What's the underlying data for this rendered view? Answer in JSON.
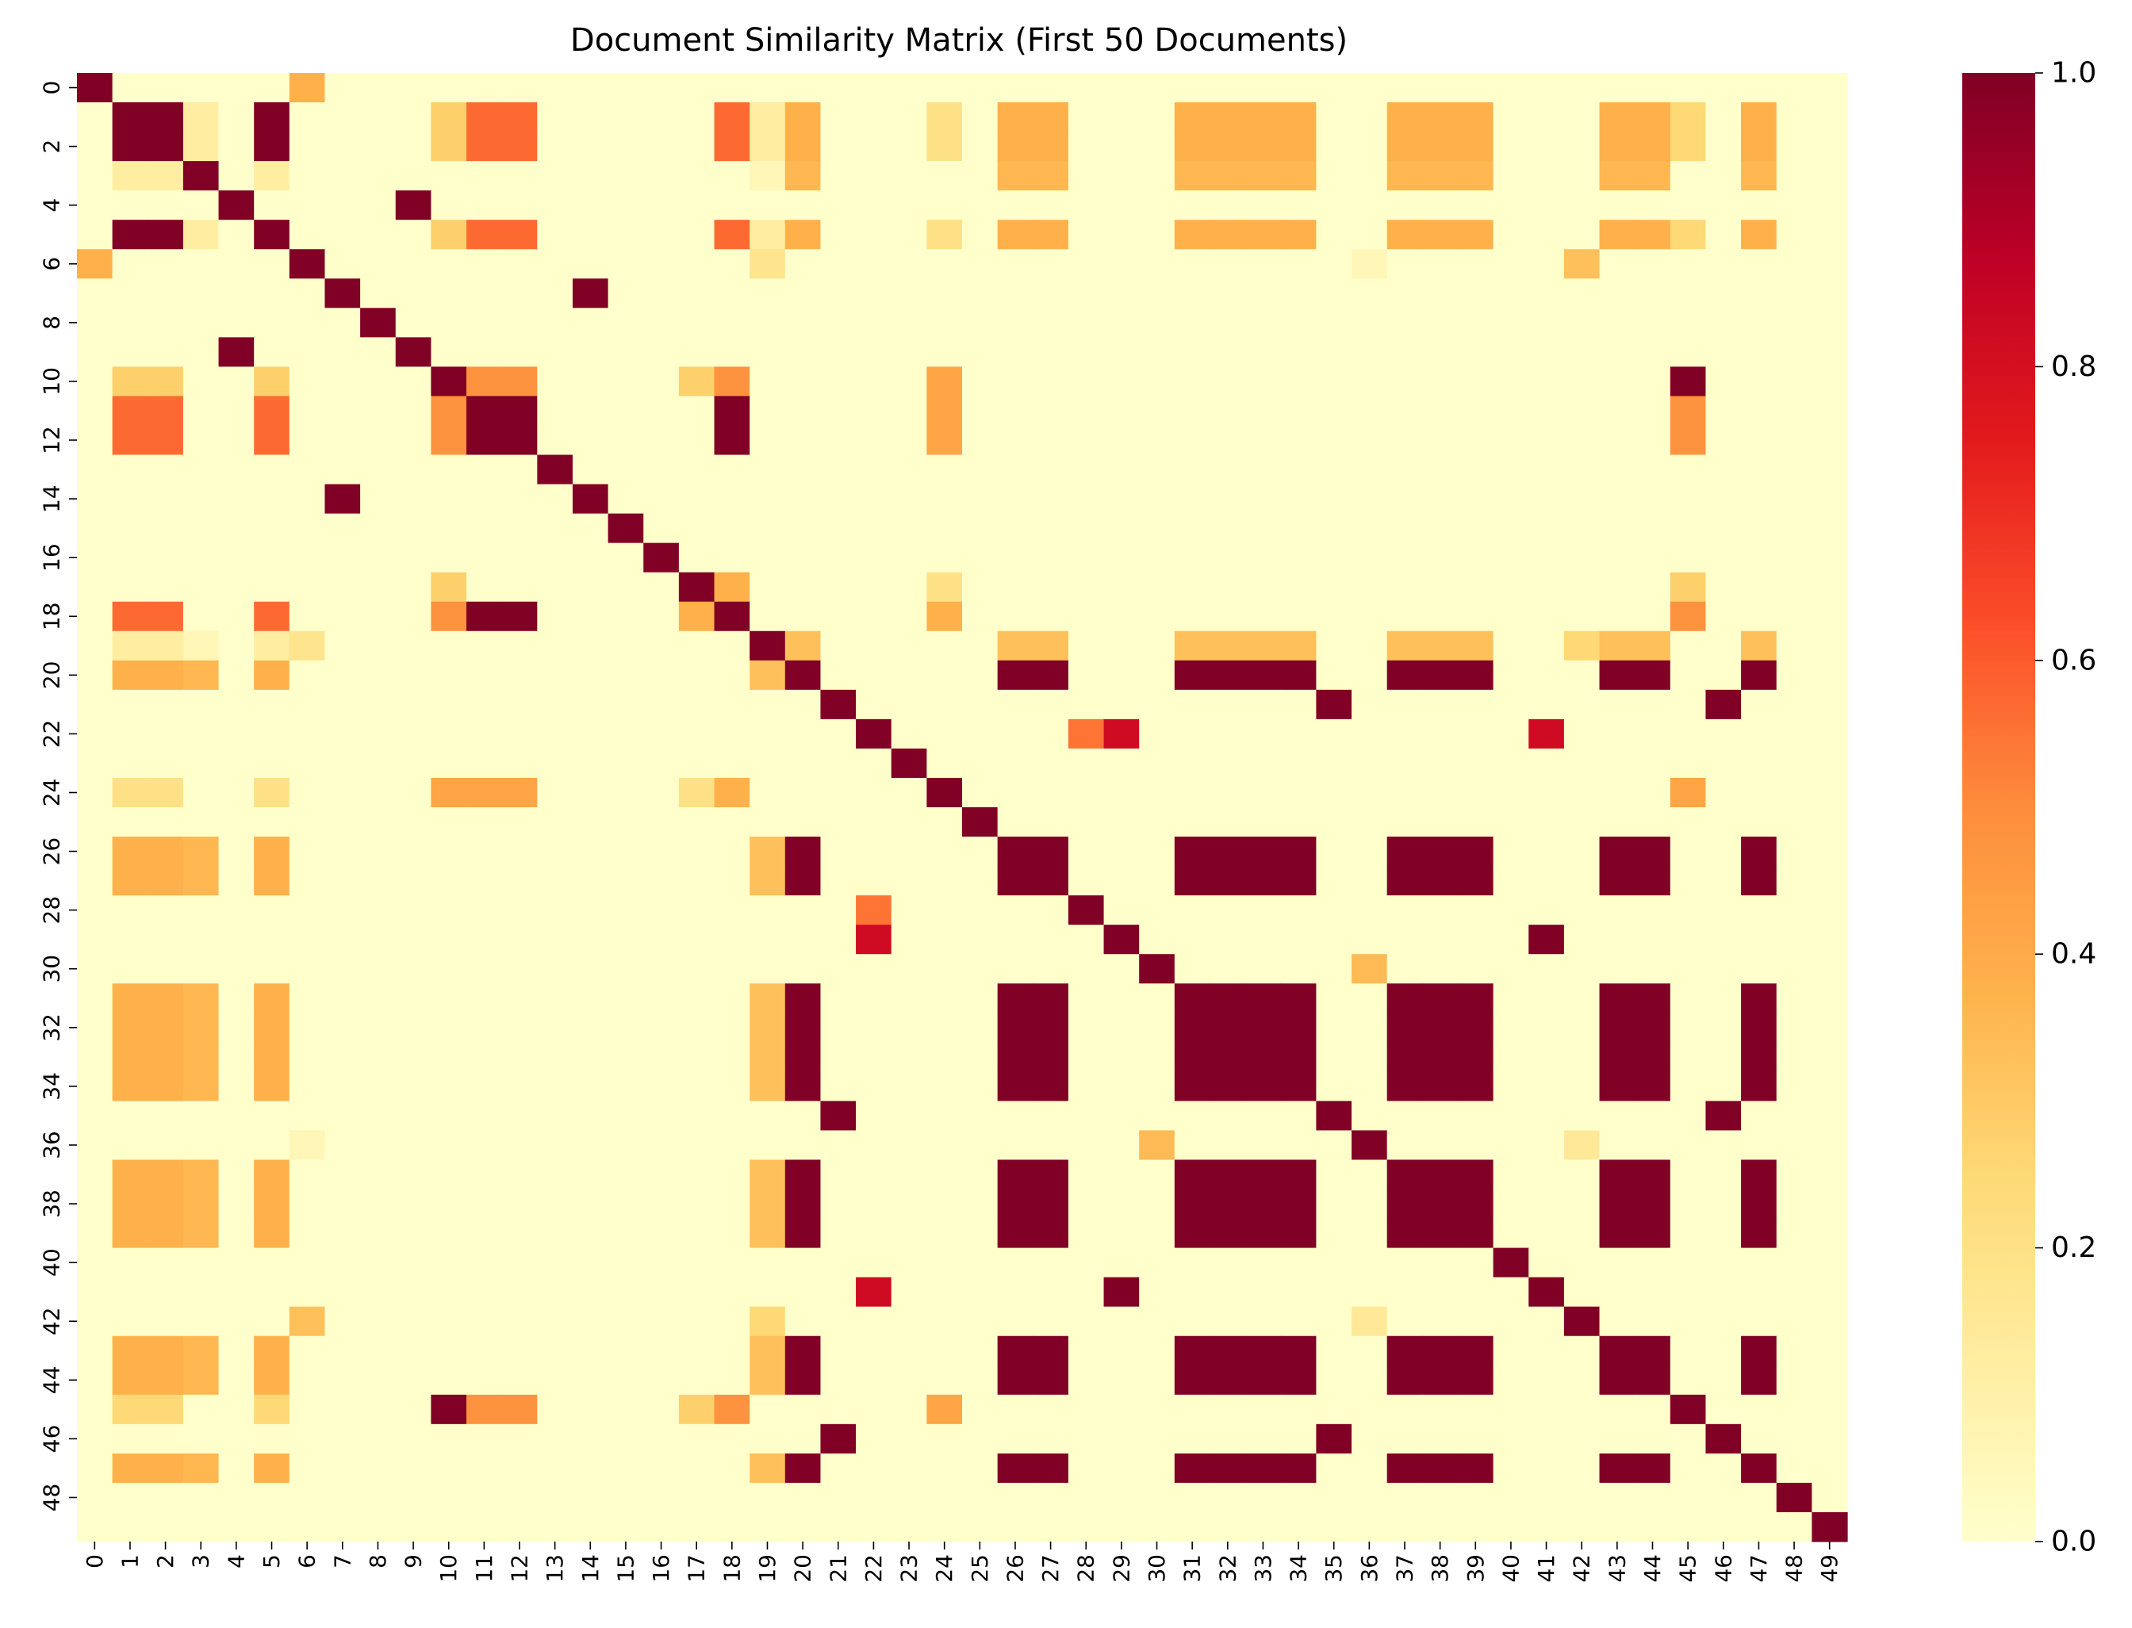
{
  "chart_data": {
    "type": "heatmap",
    "title": "Document Similarity Matrix (First 50 Documents)",
    "xlabel": "",
    "ylabel": "",
    "n": 50,
    "x_tick_labels": [
      "0",
      "1",
      "2",
      "3",
      "4",
      "5",
      "6",
      "7",
      "8",
      "9",
      "10",
      "11",
      "12",
      "13",
      "14",
      "15",
      "16",
      "17",
      "18",
      "19",
      "20",
      "21",
      "22",
      "23",
      "24",
      "25",
      "26",
      "27",
      "28",
      "29",
      "30",
      "31",
      "32",
      "33",
      "34",
      "35",
      "36",
      "37",
      "38",
      "39",
      "40",
      "41",
      "42",
      "43",
      "44",
      "45",
      "46",
      "47",
      "48",
      "49"
    ],
    "y_tick_labels": [
      "0",
      "2",
      "4",
      "6",
      "8",
      "10",
      "12",
      "14",
      "16",
      "18",
      "20",
      "22",
      "24",
      "26",
      "28",
      "30",
      "32",
      "34",
      "36",
      "38",
      "40",
      "42",
      "44",
      "46",
      "48"
    ],
    "colorbar": {
      "colormap": "YlOrRd",
      "range": [
        0,
        1
      ],
      "tick_labels": [
        "0.0",
        "0.2",
        "0.4",
        "0.6",
        "0.8",
        "1.0"
      ],
      "tick_values": [
        0,
        0.2,
        0.4,
        0.6,
        0.8,
        1.0
      ]
    },
    "groups": {
      "A": [
        1,
        2,
        5
      ],
      "B": [
        20,
        26,
        27,
        31,
        32,
        33,
        34,
        37,
        38,
        39,
        43,
        44,
        47
      ],
      "C": [
        11,
        12,
        18
      ],
      "D": [
        10,
        45
      ],
      "E": [
        21,
        35,
        46
      ],
      "F": [
        4,
        9
      ],
      "G": [
        7,
        14
      ],
      "H": [
        29,
        41
      ]
    },
    "pairs": [
      [
        0,
        6,
        0.38
      ],
      [
        1,
        3,
        0.12
      ],
      [
        2,
        3,
        0.12
      ],
      [
        3,
        5,
        0.12
      ],
      [
        1,
        10,
        0.28
      ],
      [
        2,
        10,
        0.28
      ],
      [
        5,
        10,
        0.28
      ],
      [
        1,
        11,
        0.57
      ],
      [
        2,
        11,
        0.57
      ],
      [
        5,
        11,
        0.57
      ],
      [
        1,
        12,
        0.57
      ],
      [
        2,
        12,
        0.57
      ],
      [
        5,
        12,
        0.57
      ],
      [
        1,
        18,
        0.57
      ],
      [
        2,
        18,
        0.57
      ],
      [
        5,
        18,
        0.57
      ],
      [
        1,
        19,
        0.12
      ],
      [
        2,
        19,
        0.12
      ],
      [
        3,
        19,
        0.06
      ],
      [
        5,
        19,
        0.12
      ],
      [
        1,
        20,
        0.38
      ],
      [
        2,
        20,
        0.38
      ],
      [
        3,
        20,
        0.36
      ],
      [
        5,
        20,
        0.38
      ],
      [
        1,
        24,
        0.2
      ],
      [
        2,
        24,
        0.2
      ],
      [
        5,
        24,
        0.2
      ],
      [
        1,
        26,
        0.38
      ],
      [
        2,
        26,
        0.38
      ],
      [
        3,
        26,
        0.36
      ],
      [
        5,
        26,
        0.38
      ],
      [
        1,
        27,
        0.38
      ],
      [
        2,
        27,
        0.38
      ],
      [
        3,
        27,
        0.36
      ],
      [
        5,
        27,
        0.38
      ],
      [
        1,
        31,
        0.38
      ],
      [
        2,
        31,
        0.38
      ],
      [
        3,
        31,
        0.36
      ],
      [
        5,
        31,
        0.38
      ],
      [
        1,
        32,
        0.38
      ],
      [
        2,
        32,
        0.38
      ],
      [
        3,
        32,
        0.36
      ],
      [
        5,
        32,
        0.38
      ],
      [
        1,
        33,
        0.38
      ],
      [
        2,
        33,
        0.38
      ],
      [
        3,
        33,
        0.36
      ],
      [
        5,
        33,
        0.38
      ],
      [
        1,
        34,
        0.38
      ],
      [
        2,
        34,
        0.38
      ],
      [
        3,
        34,
        0.36
      ],
      [
        5,
        34,
        0.38
      ],
      [
        1,
        37,
        0.38
      ],
      [
        2,
        37,
        0.38
      ],
      [
        3,
        37,
        0.36
      ],
      [
        5,
        37,
        0.38
      ],
      [
        1,
        38,
        0.38
      ],
      [
        2,
        38,
        0.38
      ],
      [
        3,
        38,
        0.36
      ],
      [
        5,
        38,
        0.38
      ],
      [
        1,
        39,
        0.38
      ],
      [
        2,
        39,
        0.38
      ],
      [
        3,
        39,
        0.36
      ],
      [
        5,
        39,
        0.38
      ],
      [
        1,
        43,
        0.38
      ],
      [
        2,
        43,
        0.38
      ],
      [
        3,
        43,
        0.36
      ],
      [
        5,
        43,
        0.38
      ],
      [
        1,
        44,
        0.38
      ],
      [
        2,
        44,
        0.38
      ],
      [
        3,
        44,
        0.36
      ],
      [
        5,
        44,
        0.38
      ],
      [
        1,
        45,
        0.25
      ],
      [
        2,
        45,
        0.25
      ],
      [
        5,
        45,
        0.25
      ],
      [
        1,
        47,
        0.38
      ],
      [
        2,
        47,
        0.38
      ],
      [
        3,
        47,
        0.36
      ],
      [
        5,
        47,
        0.38
      ],
      [
        6,
        19,
        0.18
      ],
      [
        6,
        36,
        0.06
      ],
      [
        6,
        42,
        0.33
      ],
      [
        10,
        11,
        0.48
      ],
      [
        10,
        12,
        0.48
      ],
      [
        10,
        18,
        0.48
      ],
      [
        10,
        17,
        0.28
      ],
      [
        17,
        45,
        0.28
      ],
      [
        17,
        24,
        0.2
      ],
      [
        17,
        18,
        0.38
      ],
      [
        10,
        24,
        0.42
      ],
      [
        11,
        24,
        0.42
      ],
      [
        12,
        24,
        0.42
      ],
      [
        18,
        24,
        0.38
      ],
      [
        11,
        45,
        0.48
      ],
      [
        12,
        45,
        0.48
      ],
      [
        18,
        45,
        0.48
      ],
      [
        24,
        45,
        0.42
      ],
      [
        19,
        20,
        0.33
      ],
      [
        19,
        26,
        0.33
      ],
      [
        19,
        27,
        0.33
      ],
      [
        19,
        31,
        0.33
      ],
      [
        19,
        32,
        0.33
      ],
      [
        19,
        33,
        0.33
      ],
      [
        19,
        34,
        0.33
      ],
      [
        19,
        37,
        0.33
      ],
      [
        19,
        38,
        0.33
      ],
      [
        19,
        39,
        0.33
      ],
      [
        19,
        43,
        0.33
      ],
      [
        19,
        44,
        0.33
      ],
      [
        19,
        47,
        0.33
      ],
      [
        19,
        42,
        0.25
      ],
      [
        22,
        28,
        0.55
      ],
      [
        22,
        29,
        0.82
      ],
      [
        22,
        41,
        0.82
      ],
      [
        30,
        36,
        0.35
      ],
      [
        36,
        42,
        0.15
      ]
    ]
  }
}
